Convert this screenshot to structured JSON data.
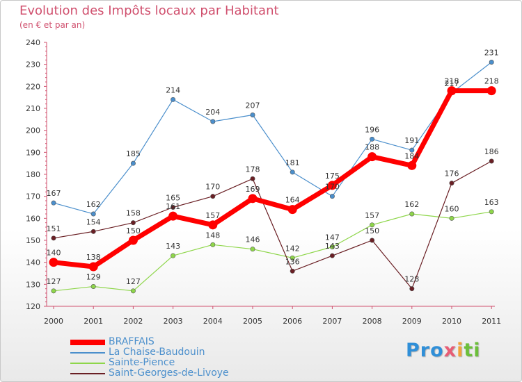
{
  "chart_data": {
    "type": "line",
    "title": "Evolution des Impôts locaux par Habitant",
    "subtitle": "(en € et par an)",
    "xlabel": "",
    "ylabel": "",
    "categories": [
      "2000",
      "2001",
      "2002",
      "2003",
      "2004",
      "2005",
      "2006",
      "2007",
      "2008",
      "2009",
      "2010",
      "2011"
    ],
    "ylim": [
      120,
      240
    ],
    "yticks": [
      120,
      130,
      140,
      150,
      160,
      170,
      180,
      190,
      200,
      210,
      220,
      230,
      240
    ],
    "grid": false,
    "legend_position": "bottom-left",
    "series": [
      {
        "name": "BRAFFAIS",
        "color": "#ff0000",
        "values": [
          140,
          138,
          150,
          161,
          157,
          169,
          164,
          175,
          188,
          184,
          218,
          218
        ],
        "labels": [
          "140",
          "138",
          "150",
          "161",
          "157",
          "169",
          "164",
          "175",
          "188",
          "184",
          "218",
          "218"
        ]
      },
      {
        "name": "La Chaise-Baudouin",
        "color": "#4b8fcc",
        "values": [
          167,
          162,
          185,
          214,
          204,
          207,
          181,
          170,
          196,
          191,
          217,
          231
        ],
        "labels": [
          "167",
          "162",
          "185",
          "214",
          "204",
          "207",
          "181",
          "170",
          "196",
          "191",
          "217",
          "231"
        ]
      },
      {
        "name": "Sainte-Pience",
        "color": "#8ed64a",
        "values": [
          127,
          129,
          127,
          143,
          148,
          146,
          142,
          147,
          157,
          162,
          160,
          163
        ],
        "labels": [
          "127",
          "129",
          "127",
          "143",
          "148",
          "146",
          "142",
          "147",
          "157",
          "162",
          "160",
          "163"
        ]
      },
      {
        "name": "Saint-Georges-de-Livoye",
        "color": "#6a1f24",
        "values": [
          151,
          154,
          158,
          165,
          170,
          178,
          136,
          143,
          150,
          128,
          176,
          186
        ],
        "labels": [
          "151",
          "154",
          "158",
          "165",
          "170",
          "178",
          "136",
          "143",
          "150",
          "128",
          "176",
          "186"
        ]
      }
    ]
  },
  "legend": {
    "items": [
      {
        "label": "BRAFFAIS",
        "color": "#ff0000"
      },
      {
        "label": "La Chaise-Baudouin",
        "color": "#4b8fcc"
      },
      {
        "label": "Sainte-Pience",
        "color": "#8ed64a"
      },
      {
        "label": "Saint-Georges-de-Livoye",
        "color": "#6a1f24"
      }
    ]
  },
  "logo": {
    "p1": "Pro",
    "p2": "x",
    "p3": "i",
    "p4": "ti"
  }
}
